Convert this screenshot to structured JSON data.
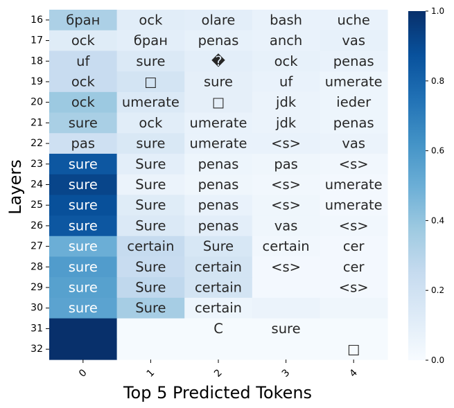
{
  "chart_data": {
    "type": "heatmap",
    "xlabel": "Top 5 Predicted Tokens",
    "ylabel": "Layers",
    "x_categories": [
      "0",
      "1",
      "2",
      "3",
      "4"
    ],
    "y_categories": [
      "16",
      "17",
      "18",
      "19",
      "20",
      "21",
      "22",
      "23",
      "24",
      "25",
      "26",
      "27",
      "28",
      "29",
      "30",
      "31",
      "32"
    ],
    "values": [
      [
        0.33,
        0.11,
        0.1,
        0.07,
        0.07
      ],
      [
        0.12,
        0.1,
        0.08,
        0.07,
        0.08
      ],
      [
        0.24,
        0.14,
        0.1,
        0.08,
        0.07
      ],
      [
        0.24,
        0.18,
        0.09,
        0.07,
        0.05
      ],
      [
        0.38,
        0.14,
        0.09,
        0.06,
        0.05
      ],
      [
        0.34,
        0.11,
        0.07,
        0.06,
        0.05
      ],
      [
        0.21,
        0.15,
        0.07,
        0.07,
        0.06
      ],
      [
        0.85,
        0.1,
        0.05,
        0.04,
        0.03
      ],
      [
        0.92,
        0.06,
        0.04,
        0.03,
        0.02
      ],
      [
        0.88,
        0.12,
        0.07,
        0.04,
        0.02
      ],
      [
        0.85,
        0.14,
        0.1,
        0.04,
        0.03
      ],
      [
        0.5,
        0.25,
        0.16,
        0.03,
        0.02
      ],
      [
        0.58,
        0.24,
        0.18,
        0.02,
        0.02
      ],
      [
        0.56,
        0.27,
        0.18,
        0.02,
        0.02
      ],
      [
        0.55,
        0.35,
        0.05,
        0.06,
        0.04
      ],
      [
        1.0,
        0.01,
        0.01,
        0.01,
        0.01
      ],
      [
        1.0,
        0.01,
        0.01,
        0.01,
        0.01
      ]
    ],
    "labels": [
      [
        "бран",
        "ock",
        "olare",
        "bash",
        "uche"
      ],
      [
        "ock",
        "бран",
        "penas",
        "anch",
        "vas"
      ],
      [
        "uf",
        "sure",
        "�",
        "ock",
        "penas"
      ],
      [
        "ock",
        "□",
        "sure",
        "uf",
        "umerate"
      ],
      [
        "ock",
        "umerate",
        "□",
        "jdk",
        "ieder"
      ],
      [
        "sure",
        "ock",
        "umerate",
        "jdk",
        "penas"
      ],
      [
        "pas",
        "sure",
        "umerate",
        "<s>",
        "vas"
      ],
      [
        "sure",
        "Sure",
        "penas",
        "pas",
        "<s>"
      ],
      [
        "sure",
        "Sure",
        "penas",
        "<s>",
        "umerate"
      ],
      [
        "sure",
        "Sure",
        "penas",
        "<s>",
        "umerate"
      ],
      [
        "sure",
        "Sure",
        "penas",
        "vas",
        "<s>"
      ],
      [
        "sure",
        "certain",
        "Sure",
        "certain",
        "cer"
      ],
      [
        "sure",
        "Sure",
        "certain",
        "<s>",
        "cer"
      ],
      [
        "sure",
        "Sure",
        "certain",
        "",
        "<s>"
      ],
      [
        "sure",
        "Sure",
        "certain",
        "",
        ""
      ],
      [
        "",
        "",
        "C",
        "sure",
        ""
      ],
      [
        "",
        "",
        "",
        "",
        "□"
      ]
    ],
    "colorbar": {
      "min": 0.0,
      "max": 1.0,
      "ticks": [
        "0.0",
        "0.2",
        "0.4",
        "0.6",
        "0.8",
        "1.0"
      ],
      "colormap": "Blues"
    }
  }
}
